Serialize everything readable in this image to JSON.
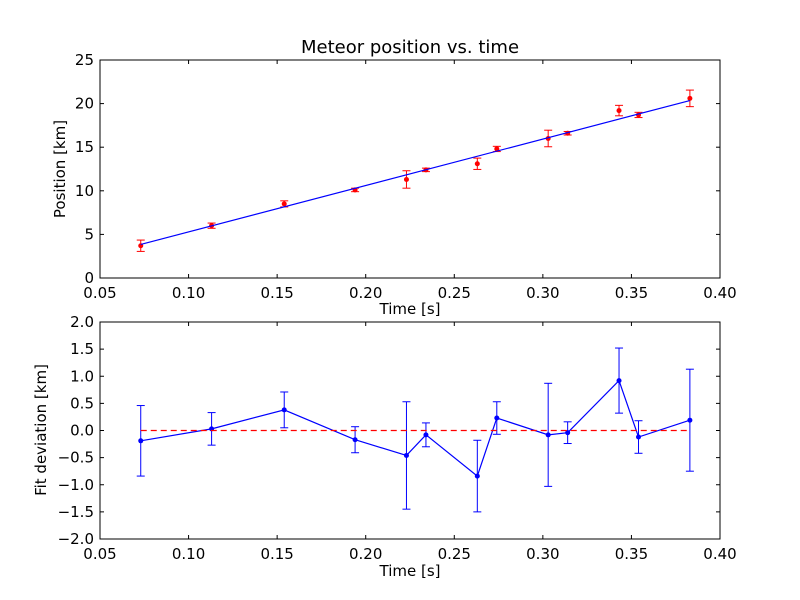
{
  "chart_data": [
    {
      "type": "scatter",
      "title": "Meteor position vs. time",
      "xlabel": "Time [s]",
      "ylabel": "Position [km]",
      "xlim": [
        0.05,
        0.4
      ],
      "ylim": [
        0,
        25
      ],
      "xticks": [
        "0.05",
        "0.10",
        "0.15",
        "0.20",
        "0.25",
        "0.30",
        "0.35",
        "0.40"
      ],
      "yticks": [
        "0",
        "5",
        "10",
        "15",
        "20",
        "25"
      ],
      "grid": false,
      "series": [
        {
          "kind": "errorbar-points",
          "color": "#ff0000",
          "x": [
            0.073,
            0.113,
            0.154,
            0.194,
            0.223,
            0.234,
            0.263,
            0.274,
            0.303,
            0.314,
            0.343,
            0.354,
            0.383
          ],
          "y": [
            3.7,
            6.0,
            8.5,
            10.1,
            11.3,
            12.4,
            13.1,
            14.8,
            16.0,
            16.6,
            19.2,
            18.7,
            20.6
          ],
          "err": [
            0.65,
            0.3,
            0.35,
            0.2,
            1.0,
            0.2,
            0.65,
            0.3,
            0.95,
            0.2,
            0.6,
            0.3,
            0.95
          ]
        },
        {
          "kind": "fit-line",
          "color": "#0000ff",
          "x": [
            0.073,
            0.383
          ],
          "y": [
            3.85,
            20.35
          ]
        }
      ]
    },
    {
      "type": "line",
      "xlabel": "Time [s]",
      "ylabel": "Fit deviation [km]",
      "xlim": [
        0.05,
        0.4
      ],
      "ylim": [
        -2.0,
        2.0
      ],
      "xticks": [
        "0.05",
        "0.10",
        "0.15",
        "0.20",
        "0.25",
        "0.30",
        "0.35",
        "0.40"
      ],
      "yticks": [
        "−2.0",
        "−1.5",
        "−1.0",
        "−0.5",
        "0.0",
        "0.5",
        "1.0",
        "1.5",
        "2.0"
      ],
      "grid": false,
      "series": [
        {
          "kind": "errorbar-line",
          "color": "#0000ff",
          "x": [
            0.073,
            0.113,
            0.154,
            0.194,
            0.223,
            0.234,
            0.263,
            0.274,
            0.303,
            0.314,
            0.343,
            0.354,
            0.383
          ],
          "y": [
            -0.19,
            0.03,
            0.38,
            -0.17,
            -0.46,
            -0.08,
            -0.84,
            0.23,
            -0.08,
            -0.04,
            0.92,
            -0.12,
            0.19
          ],
          "err": [
            0.65,
            0.3,
            0.33,
            0.24,
            0.99,
            0.22,
            0.66,
            0.3,
            0.95,
            0.2,
            0.6,
            0.3,
            0.94
          ]
        },
        {
          "kind": "zero-reference",
          "color": "#ff0000",
          "x": [
            0.073,
            0.383
          ],
          "y": [
            0,
            0
          ]
        }
      ]
    }
  ]
}
